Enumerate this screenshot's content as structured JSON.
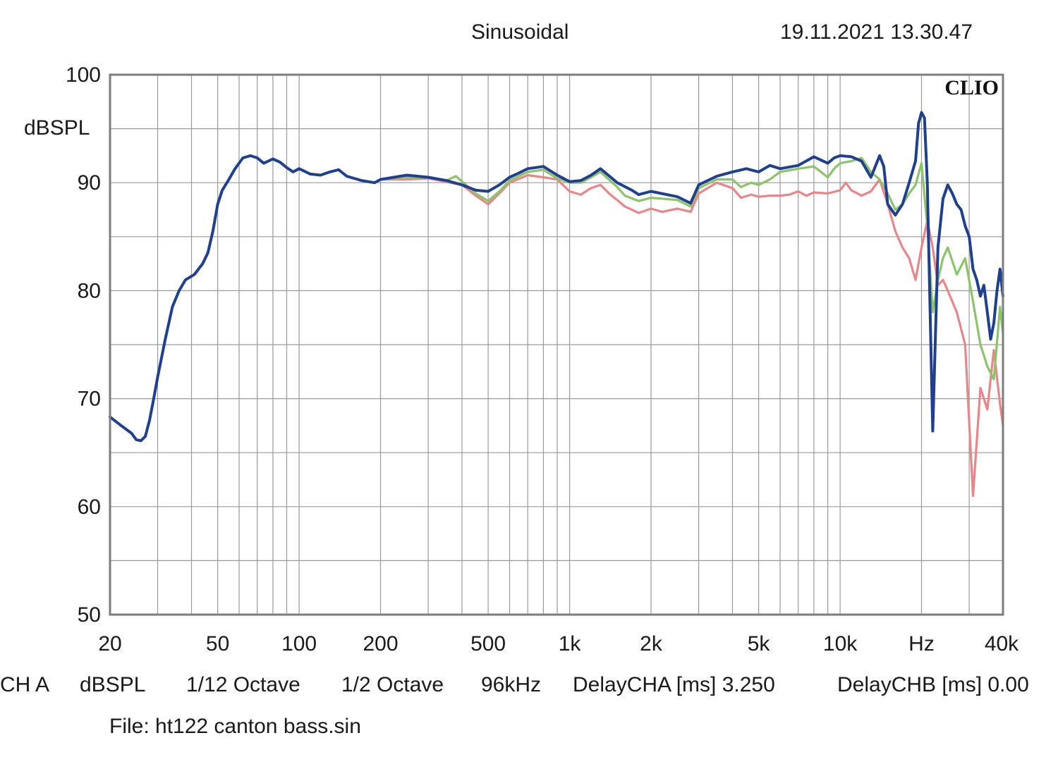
{
  "header": {
    "mode": "Sinusoidal",
    "timestamp": "19.11.2021 13.30.47"
  },
  "brand": "CLIO",
  "footer": {
    "channel": "CH A",
    "unit": "dBSPL",
    "smoothing_1": "1/12 Octave",
    "smoothing_2": "1/2 Octave",
    "sample_rate": "96kHz",
    "delay_a": "DelayCHA [ms] 3.250",
    "delay_b": "DelayCHB [ms] 0.00",
    "file": "File: ht122 canton bass.sin"
  },
  "colors": {
    "background": "#ffffff",
    "grid": "#9a9a9a",
    "frame": "#7d7d7d",
    "blue": "#1f3f8f",
    "green": "#8cc46a",
    "red": "#e8868a"
  },
  "chart_data": {
    "type": "line",
    "title": "",
    "xlabel": "Hz",
    "ylabel": "dBSPL",
    "x_scale": "log",
    "xlim": [
      20,
      40000
    ],
    "ylim": [
      50,
      100
    ],
    "grid": true,
    "y_ticks": [
      {
        "value": 100,
        "label": "100"
      },
      {
        "value": 90,
        "label": "90"
      },
      {
        "value": 80,
        "label": "80"
      },
      {
        "value": 70,
        "label": "70"
      },
      {
        "value": 60,
        "label": "60"
      },
      {
        "value": 50,
        "label": "50"
      }
    ],
    "x_ticks": [
      {
        "value": 20,
        "label": "20"
      },
      {
        "value": 50,
        "label": "50"
      },
      {
        "value": 100,
        "label": "100"
      },
      {
        "value": 200,
        "label": "200"
      },
      {
        "value": 500,
        "label": "500"
      },
      {
        "value": 1000,
        "label": "1k"
      },
      {
        "value": 2000,
        "label": "2k"
      },
      {
        "value": 5000,
        "label": "5k"
      },
      {
        "value": 10000,
        "label": "10k"
      },
      {
        "value": 20000,
        "label": "Hz"
      },
      {
        "value": 40000,
        "label": "40k"
      }
    ],
    "series": [
      {
        "color": "#e8868a",
        "points": [
          [
            200,
            90.3
          ],
          [
            250,
            90.3
          ],
          [
            300,
            90.4
          ],
          [
            400,
            89.8
          ],
          [
            450,
            88.8
          ],
          [
            500,
            88.0
          ],
          [
            550,
            89.0
          ],
          [
            600,
            90.0
          ],
          [
            700,
            90.7
          ],
          [
            800,
            90.5
          ],
          [
            900,
            90.3
          ],
          [
            1000,
            89.2
          ],
          [
            1100,
            88.9
          ],
          [
            1200,
            89.5
          ],
          [
            1300,
            89.8
          ],
          [
            1400,
            89.0
          ],
          [
            1600,
            87.8
          ],
          [
            1800,
            87.2
          ],
          [
            2000,
            87.6
          ],
          [
            2200,
            87.3
          ],
          [
            2500,
            87.6
          ],
          [
            2800,
            87.3
          ],
          [
            3000,
            89.0
          ],
          [
            3500,
            90.0
          ],
          [
            4000,
            89.5
          ],
          [
            4300,
            88.6
          ],
          [
            4700,
            88.9
          ],
          [
            5000,
            88.7
          ],
          [
            5500,
            88.8
          ],
          [
            6000,
            88.8
          ],
          [
            6500,
            88.9
          ],
          [
            7000,
            89.2
          ],
          [
            7500,
            88.8
          ],
          [
            8000,
            89.1
          ],
          [
            9000,
            89.0
          ],
          [
            10000,
            89.3
          ],
          [
            10500,
            90.0
          ],
          [
            11000,
            89.3
          ],
          [
            12000,
            88.8
          ],
          [
            13000,
            89.2
          ],
          [
            14000,
            90.3
          ],
          [
            15000,
            88.0
          ],
          [
            16000,
            85.5
          ],
          [
            17000,
            84.0
          ],
          [
            18000,
            83.0
          ],
          [
            19000,
            81.0
          ],
          [
            20000,
            84.0
          ],
          [
            21000,
            86.5
          ],
          [
            22000,
            84.0
          ],
          [
            23000,
            80.5
          ],
          [
            24000,
            81.0
          ],
          [
            25000,
            80.0
          ],
          [
            27000,
            78.0
          ],
          [
            29000,
            75.0
          ],
          [
            31000,
            61.0
          ],
          [
            33000,
            71.0
          ],
          [
            35000,
            69.0
          ],
          [
            37000,
            74.5
          ],
          [
            39000,
            69.5
          ],
          [
            40000,
            67.5
          ]
        ]
      },
      {
        "color": "#8cc46a",
        "points": [
          [
            200,
            90.3
          ],
          [
            250,
            90.5
          ],
          [
            300,
            90.5
          ],
          [
            350,
            90.2
          ],
          [
            380,
            90.6
          ],
          [
            450,
            89.0
          ],
          [
            500,
            88.3
          ],
          [
            550,
            89.2
          ],
          [
            600,
            90.2
          ],
          [
            700,
            91.0
          ],
          [
            800,
            91.2
          ],
          [
            900,
            90.4
          ],
          [
            1000,
            90.0
          ],
          [
            1100,
            90.0
          ],
          [
            1200,
            90.5
          ],
          [
            1300,
            91.0
          ],
          [
            1500,
            89.6
          ],
          [
            1600,
            88.8
          ],
          [
            1800,
            88.3
          ],
          [
            2000,
            88.6
          ],
          [
            2500,
            88.4
          ],
          [
            2800,
            87.8
          ],
          [
            3000,
            89.5
          ],
          [
            3500,
            90.3
          ],
          [
            4000,
            90.3
          ],
          [
            4300,
            89.6
          ],
          [
            4700,
            90.0
          ],
          [
            5000,
            89.8
          ],
          [
            5500,
            90.3
          ],
          [
            6000,
            91.0
          ],
          [
            7000,
            91.3
          ],
          [
            8000,
            91.5
          ],
          [
            9000,
            90.5
          ],
          [
            9500,
            91.3
          ],
          [
            10000,
            91.8
          ],
          [
            11000,
            92.0
          ],
          [
            12000,
            92.3
          ],
          [
            13000,
            91.0
          ],
          [
            14000,
            90.3
          ],
          [
            15000,
            89.0
          ],
          [
            16000,
            87.5
          ],
          [
            17000,
            88.0
          ],
          [
            18000,
            89.0
          ],
          [
            19000,
            89.8
          ],
          [
            20000,
            91.8
          ],
          [
            21000,
            86.0
          ],
          [
            22000,
            78.0
          ],
          [
            23000,
            81.0
          ],
          [
            24000,
            83.0
          ],
          [
            25000,
            84.0
          ],
          [
            27000,
            81.5
          ],
          [
            29000,
            83.0
          ],
          [
            31000,
            79.0
          ],
          [
            33000,
            75.0
          ],
          [
            35000,
            73.0
          ],
          [
            37000,
            71.8
          ],
          [
            39000,
            78.5
          ],
          [
            40000,
            76.0
          ]
        ]
      },
      {
        "color": "#1f3f8f",
        "points": [
          [
            20,
            68.3
          ],
          [
            22,
            67.5
          ],
          [
            24,
            66.8
          ],
          [
            25,
            66.2
          ],
          [
            26,
            66.1
          ],
          [
            27,
            66.5
          ],
          [
            28,
            68.0
          ],
          [
            29,
            70.0
          ],
          [
            30,
            72.0
          ],
          [
            32,
            75.5
          ],
          [
            34,
            78.5
          ],
          [
            36,
            80.0
          ],
          [
            38,
            81.0
          ],
          [
            41,
            81.5
          ],
          [
            44,
            82.5
          ],
          [
            46,
            83.5
          ],
          [
            48,
            85.5
          ],
          [
            50,
            88.0
          ],
          [
            52,
            89.3
          ],
          [
            55,
            90.3
          ],
          [
            58,
            91.3
          ],
          [
            62,
            92.3
          ],
          [
            66,
            92.5
          ],
          [
            70,
            92.3
          ],
          [
            74,
            91.8
          ],
          [
            80,
            92.2
          ],
          [
            85,
            91.9
          ],
          [
            90,
            91.4
          ],
          [
            95,
            91.0
          ],
          [
            100,
            91.3
          ],
          [
            110,
            90.8
          ],
          [
            120,
            90.7
          ],
          [
            130,
            91.0
          ],
          [
            140,
            91.2
          ],
          [
            150,
            90.6
          ],
          [
            170,
            90.2
          ],
          [
            190,
            90.0
          ],
          [
            200,
            90.3
          ],
          [
            250,
            90.7
          ],
          [
            300,
            90.5
          ],
          [
            350,
            90.2
          ],
          [
            400,
            89.8
          ],
          [
            450,
            89.3
          ],
          [
            500,
            89.2
          ],
          [
            550,
            89.8
          ],
          [
            600,
            90.5
          ],
          [
            650,
            90.9
          ],
          [
            700,
            91.3
          ],
          [
            800,
            91.5
          ],
          [
            900,
            90.7
          ],
          [
            1000,
            90.1
          ],
          [
            1100,
            90.2
          ],
          [
            1200,
            90.7
          ],
          [
            1300,
            91.3
          ],
          [
            1500,
            90.0
          ],
          [
            1700,
            89.3
          ],
          [
            1800,
            88.9
          ],
          [
            2000,
            89.2
          ],
          [
            2500,
            88.7
          ],
          [
            2800,
            88.1
          ],
          [
            3000,
            89.8
          ],
          [
            3500,
            90.6
          ],
          [
            4000,
            91.0
          ],
          [
            4500,
            91.3
          ],
          [
            5000,
            91.0
          ],
          [
            5500,
            91.6
          ],
          [
            6000,
            91.3
          ],
          [
            7000,
            91.6
          ],
          [
            8000,
            92.4
          ],
          [
            9000,
            91.8
          ],
          [
            9500,
            92.3
          ],
          [
            10000,
            92.5
          ],
          [
            11000,
            92.4
          ],
          [
            12000,
            92.0
          ],
          [
            13000,
            90.5
          ],
          [
            14000,
            92.5
          ],
          [
            14500,
            91.5
          ],
          [
            15000,
            88.0
          ],
          [
            16000,
            87.0
          ],
          [
            17000,
            88.0
          ],
          [
            18000,
            90.0
          ],
          [
            19000,
            92.0
          ],
          [
            19500,
            95.5
          ],
          [
            20000,
            96.5
          ],
          [
            20500,
            96.0
          ],
          [
            21000,
            90.0
          ],
          [
            22000,
            67.0
          ],
          [
            23000,
            84.0
          ],
          [
            24000,
            88.5
          ],
          [
            25000,
            89.8
          ],
          [
            26000,
            89.0
          ],
          [
            27000,
            88.0
          ],
          [
            28000,
            87.5
          ],
          [
            29000,
            86.0
          ],
          [
            30000,
            85.0
          ],
          [
            31000,
            82.0
          ],
          [
            32000,
            81.0
          ],
          [
            33000,
            79.5
          ],
          [
            34000,
            80.5
          ],
          [
            35000,
            78.0
          ],
          [
            36000,
            75.5
          ],
          [
            37000,
            77.0
          ],
          [
            38000,
            80.0
          ],
          [
            39000,
            82.0
          ],
          [
            40000,
            79.5
          ]
        ]
      }
    ]
  }
}
